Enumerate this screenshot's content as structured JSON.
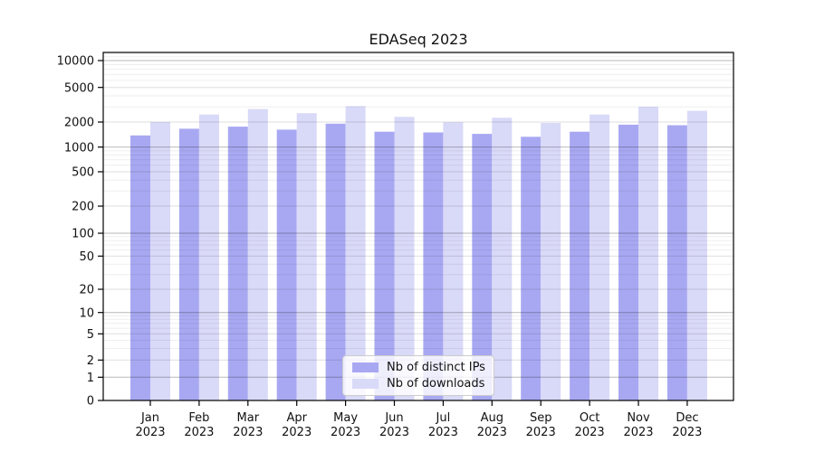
{
  "title": "EDASeq 2023",
  "chart_data": {
    "type": "bar",
    "title": "EDASeq 2023",
    "categories": [
      "Jan 2023",
      "Feb 2023",
      "Mar 2023",
      "Apr 2023",
      "May 2023",
      "Jun 2023",
      "Jul 2023",
      "Aug 2023",
      "Sep 2023",
      "Oct 2023",
      "Nov 2023",
      "Dec 2023"
    ],
    "series": [
      {
        "name": "Nb of distinct IPs",
        "color": "#a8a8f2",
        "values": [
          1380,
          1660,
          1760,
          1620,
          1910,
          1530,
          1500,
          1440,
          1330,
          1530,
          1860,
          1830
        ]
      },
      {
        "name": "Nb of downloads",
        "color": "#d9d9f8",
        "values": [
          2000,
          2440,
          2820,
          2530,
          3040,
          2290,
          1990,
          2240,
          1950,
          2440,
          3000,
          2690
        ]
      }
    ],
    "ylabel": "",
    "xlabel": "",
    "y_axis": {
      "scale": "log-like",
      "ticks": [
        0,
        1,
        2,
        5,
        10,
        20,
        50,
        100,
        200,
        500,
        1000,
        2000,
        5000,
        10000
      ],
      "ylim_top": 12500
    },
    "grid": "horizontal, major and minor log gridlines",
    "legend_position": "inside bottom-center"
  }
}
